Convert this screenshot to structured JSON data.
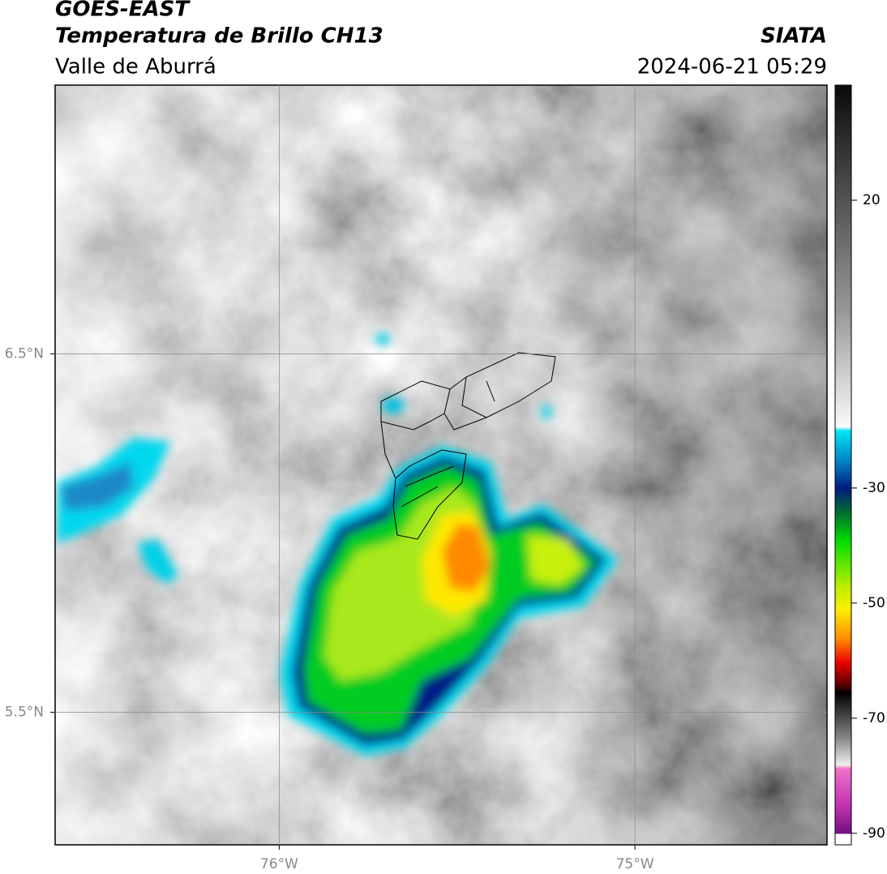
{
  "header": {
    "title": "GOES-EAST",
    "subtitle": "Temperatura de Brillo CH13",
    "region": "Valle de Aburrá",
    "source": "SIATA",
    "datetime": "2024-06-21 05:29"
  },
  "map": {
    "xlim": [
      -76.63,
      -74.46
    ],
    "ylim": [
      5.13,
      7.25
    ],
    "xticks": [
      {
        "value": -76,
        "label": "76°W"
      },
      {
        "value": -75,
        "label": "75°W"
      }
    ],
    "yticks": [
      {
        "value": 6.5,
        "label": "6.5°N"
      },
      {
        "value": 5.5,
        "label": "5.5°N"
      }
    ],
    "grid": true
  },
  "colorbar": {
    "lim": [
      -92,
      40
    ],
    "ticks": [
      20,
      -30,
      -50,
      -70,
      -90
    ]
  }
}
